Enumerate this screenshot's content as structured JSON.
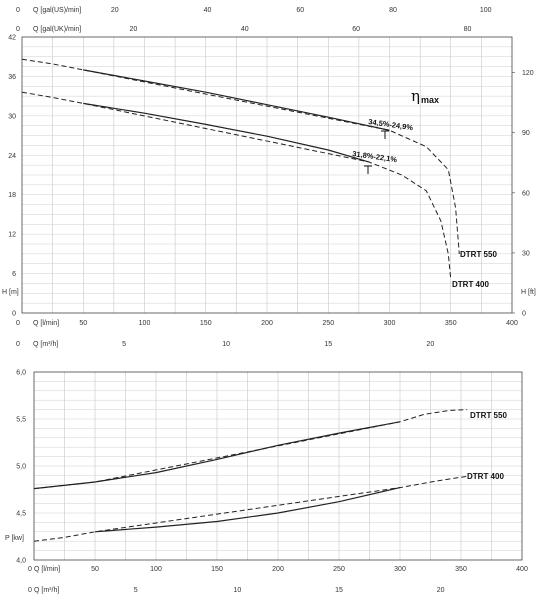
{
  "charts": {
    "head": {
      "chart_data": {
        "type": "line",
        "title": "",
        "x": [
          0,
          50,
          100,
          150,
          200,
          250,
          280,
          300
        ],
        "series": [
          {
            "name": "DTRT 550",
            "label": "DTRT 550",
            "solid": [
              [
                50,
                37.0
              ],
              [
                100,
                35.3
              ],
              [
                150,
                33.6
              ],
              [
                200,
                31.7
              ],
              [
                250,
                29.8
              ],
              [
                300,
                27.8
              ]
            ],
            "dashed": [
              [
                0,
                38.6
              ],
              [
                25,
                37.9
              ],
              [
                50,
                37.0
              ],
              [
                300,
                27.8
              ],
              [
                330,
                25.3
              ],
              [
                348,
                21.8
              ],
              [
                354,
                16.0
              ],
              [
                357,
                9.0
              ]
            ]
          },
          {
            "name": "DTRT 400",
            "label": "DTRT 400",
            "solid": [
              [
                50,
                31.9
              ],
              [
                100,
                30.4
              ],
              [
                150,
                28.7
              ],
              [
                200,
                26.9
              ],
              [
                250,
                24.8
              ],
              [
                283,
                23.0
              ]
            ],
            "dashed": [
              [
                0,
                33.6
              ],
              [
                25,
                32.8
              ],
              [
                50,
                31.9
              ],
              [
                283,
                23.0
              ],
              [
                310,
                21.0
              ],
              [
                330,
                18.6
              ],
              [
                342,
                14.0
              ],
              [
                348,
                9.0
              ],
              [
                350,
                5.0
              ]
            ]
          }
        ],
        "x_axes": [
          {
            "label": "Q [l/min]",
            "ticks": [
              "0",
              "50",
              "100",
              "150",
              "200",
              "250",
              "300",
              "350",
              "400"
            ]
          },
          {
            "label": "Q [m³/h]",
            "ticks": [
              "0",
              "5",
              "10",
              "15",
              "20"
            ]
          },
          {
            "label": "Q [gal(US)/min]",
            "ticks": [
              "0",
              "20",
              "40",
              "60",
              "80",
              "100"
            ]
          },
          {
            "label": "Q [gal(UK)/min]",
            "ticks": [
              "0",
              "20",
              "40",
              "60",
              "80"
            ]
          }
        ],
        "ylabel": "H [m]",
        "ylim": [
          0,
          42
        ],
        "yticks": [
          "0",
          "6",
          "12",
          "18",
          "24",
          "30",
          "36",
          "42"
        ],
        "ylabel_right": "H [ft]",
        "yticks_right": [
          "0",
          "30",
          "60",
          "90",
          "120"
        ],
        "xlim": [
          0,
          400
        ],
        "grid": true,
        "annotations": {
          "eta_symbol": "η",
          "eta_sub": "max",
          "eff_550": "34,5%-24,9%",
          "eff_400": "31,8%-22,1%"
        }
      }
    },
    "power": {
      "chart_data": {
        "type": "line",
        "title": "",
        "series": [
          {
            "name": "DTRT 550",
            "label": "DTRT 550",
            "solid": [
              [
                0,
                4.76
              ],
              [
                50,
                4.83
              ],
              [
                100,
                4.93
              ],
              [
                150,
                5.07
              ],
              [
                200,
                5.22
              ],
              [
                250,
                5.35
              ],
              [
                300,
                5.47
              ]
            ],
            "dashed": [
              [
                0,
                4.76
              ],
              [
                50,
                4.83
              ],
              [
                300,
                5.47
              ],
              [
                320,
                5.55
              ],
              [
                340,
                5.59
              ],
              [
                355,
                5.6
              ]
            ]
          },
          {
            "name": "DTRT 400",
            "label": "DTRT 400",
            "solid": [
              [
                50,
                4.3
              ],
              [
                100,
                4.35
              ],
              [
                150,
                4.41
              ],
              [
                200,
                4.5
              ],
              [
                250,
                4.62
              ],
              [
                300,
                4.77
              ]
            ],
            "dashed": [
              [
                0,
                4.2
              ],
              [
                25,
                4.24
              ],
              [
                50,
                4.3
              ],
              [
                300,
                4.77
              ],
              [
                330,
                4.84
              ],
              [
                355,
                4.89
              ]
            ]
          }
        ],
        "x_axes": [
          {
            "label": "Q [l/min]",
            "ticks": [
              "0",
              "50",
              "100",
              "150",
              "200",
              "250",
              "300",
              "350",
              "400"
            ]
          },
          {
            "label": "Q [m³/h]",
            "ticks": [
              "0",
              "5",
              "10",
              "15",
              "20"
            ]
          }
        ],
        "ylabel": "P [kw]",
        "ylim": [
          4.0,
          6.0
        ],
        "yticks": [
          "4,0",
          "4,5",
          "5,0",
          "5,5",
          "6,0"
        ],
        "xlim": [
          0,
          400
        ],
        "grid": true
      }
    }
  }
}
